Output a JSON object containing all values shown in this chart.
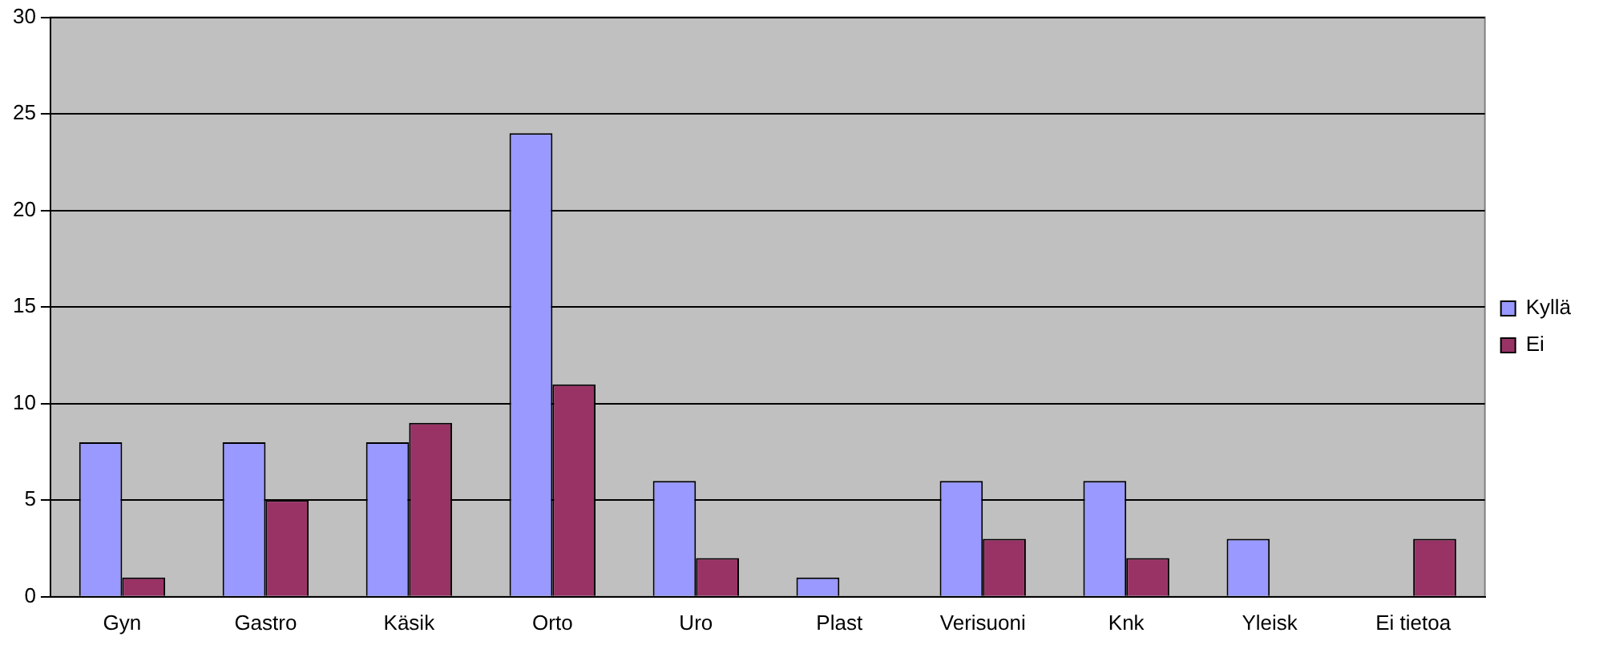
{
  "chart_data": {
    "type": "bar",
    "categories": [
      "Gyn",
      "Gastro",
      "Käsik",
      "Orto",
      "Uro",
      "Plast",
      "Verisuoni",
      "Knk",
      "Yleisk",
      "Ei tietoa"
    ],
    "series": [
      {
        "name": "Kyllä",
        "color": "#9999ff",
        "values": [
          8,
          8,
          8,
          24,
          6,
          1,
          6,
          6,
          3,
          0
        ]
      },
      {
        "name": "Ei",
        "color": "#993366",
        "values": [
          1,
          5,
          9,
          11,
          2,
          0,
          3,
          2,
          0,
          3
        ]
      }
    ],
    "ylim": [
      0,
      30
    ],
    "yticks": [
      0,
      5,
      10,
      15,
      20,
      25,
      30
    ],
    "grid": "y",
    "legend": "right"
  }
}
